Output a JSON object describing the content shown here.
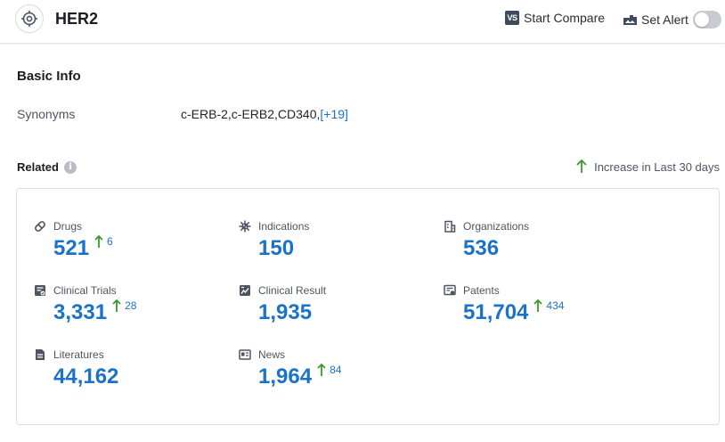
{
  "header": {
    "title": "HER2",
    "compare_badge": "VS",
    "compare_label": "Start Compare",
    "alert_label": "Set Alert"
  },
  "basic_info": {
    "title": "Basic Info",
    "synonyms_label": "Synonyms",
    "synonyms_value": "c-ERB-2,c-ERB2,CD340,",
    "synonyms_more": "[+19]"
  },
  "related": {
    "title": "Related",
    "info_glyph": "i",
    "legend_label": "Increase in Last 30 days",
    "items": [
      {
        "label": "Drugs",
        "value": "521",
        "increase": "6",
        "icon": "pill-icon"
      },
      {
        "label": "Indications",
        "value": "150",
        "increase": "",
        "icon": "virus-icon"
      },
      {
        "label": "Organizations",
        "value": "536",
        "increase": "",
        "icon": "building-icon"
      },
      {
        "label": "Clinical Trials",
        "value": "3,331",
        "increase": "28",
        "icon": "clinical-trial-icon"
      },
      {
        "label": "Clinical Result",
        "value": "1,935",
        "increase": "",
        "icon": "chart-image-icon"
      },
      {
        "label": "Patents",
        "value": "51,704",
        "increase": "434",
        "icon": "patent-icon"
      },
      {
        "label": "Literatures",
        "value": "44,162",
        "increase": "",
        "icon": "document-icon"
      },
      {
        "label": "News",
        "value": "1,964",
        "increase": "84",
        "icon": "newspaper-icon"
      }
    ]
  },
  "colors": {
    "accent": "#1a73c8",
    "increase_arrow": "#3a9a2e"
  }
}
